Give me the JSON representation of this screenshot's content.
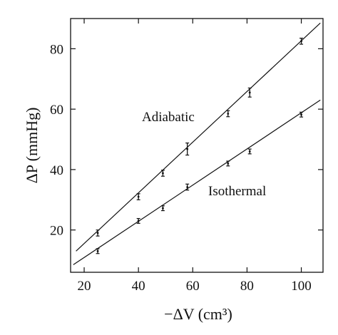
{
  "chart_data": {
    "type": "scatter",
    "title": "",
    "xlabel": "−ΔV (cm³)",
    "ylabel": "ΔP (mmHg)",
    "xlim": [
      15,
      108
    ],
    "ylim": [
      6,
      90
    ],
    "x_ticks": [
      20,
      40,
      60,
      80,
      100
    ],
    "y_ticks": [
      20,
      40,
      60,
      80
    ],
    "grid": false,
    "legend": "none",
    "series": [
      {
        "name": "Adiabatic",
        "points": [
          {
            "x": 25,
            "y": 19.0,
            "err": 1.0
          },
          {
            "x": 40,
            "y": 31.0,
            "err": 1.0
          },
          {
            "x": 49,
            "y": 38.8,
            "err": 1.0
          },
          {
            "x": 58,
            "y": 46.8,
            "err": 2.0
          },
          {
            "x": 73,
            "y": 58.5,
            "err": 1.0
          },
          {
            "x": 81,
            "y": 65.5,
            "err": 1.5
          },
          {
            "x": 100,
            "y": 82.5,
            "err": 1.0
          }
        ],
        "fit_line": {
          "x": [
            17,
            107
          ],
          "y": [
            13.0,
            88.5
          ]
        }
      },
      {
        "name": "Isothermal",
        "points": [
          {
            "x": 25,
            "y": 13.0,
            "err": 0.8
          },
          {
            "x": 40,
            "y": 23.0,
            "err": 0.8
          },
          {
            "x": 49,
            "y": 27.2,
            "err": 0.8
          },
          {
            "x": 58,
            "y": 34.2,
            "err": 1.0
          },
          {
            "x": 73,
            "y": 42.0,
            "err": 0.8
          },
          {
            "x": 81,
            "y": 46.0,
            "err": 0.8
          },
          {
            "x": 100,
            "y": 58.2,
            "err": 0.8
          }
        ],
        "fit_line": {
          "x": [
            16,
            107
          ],
          "y": [
            8.5,
            63.0
          ]
        }
      }
    ],
    "annotations": [
      "Adiabatic",
      "Isothermal"
    ]
  }
}
